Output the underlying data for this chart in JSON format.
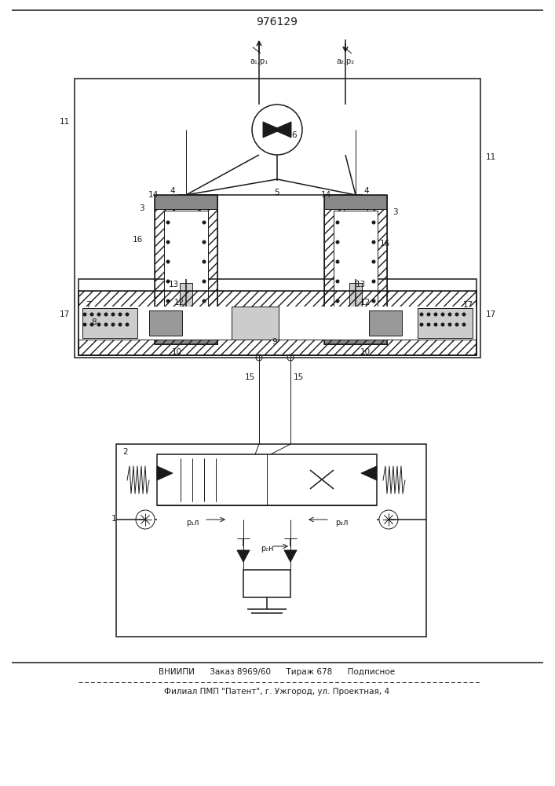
{
  "title": "976129",
  "footer_line1": "ВНИИПИ      Заказ 8969/60      Тираж 678      Подписное",
  "footer_line2": "Филиал ПМП \"Патент\", г. Ужгород, ул. Проектная, 4",
  "bg_color": "#ffffff",
  "ink_color": "#1a1a1a",
  "fig_width": 7.07,
  "fig_height": 10.0,
  "dpi": 100
}
